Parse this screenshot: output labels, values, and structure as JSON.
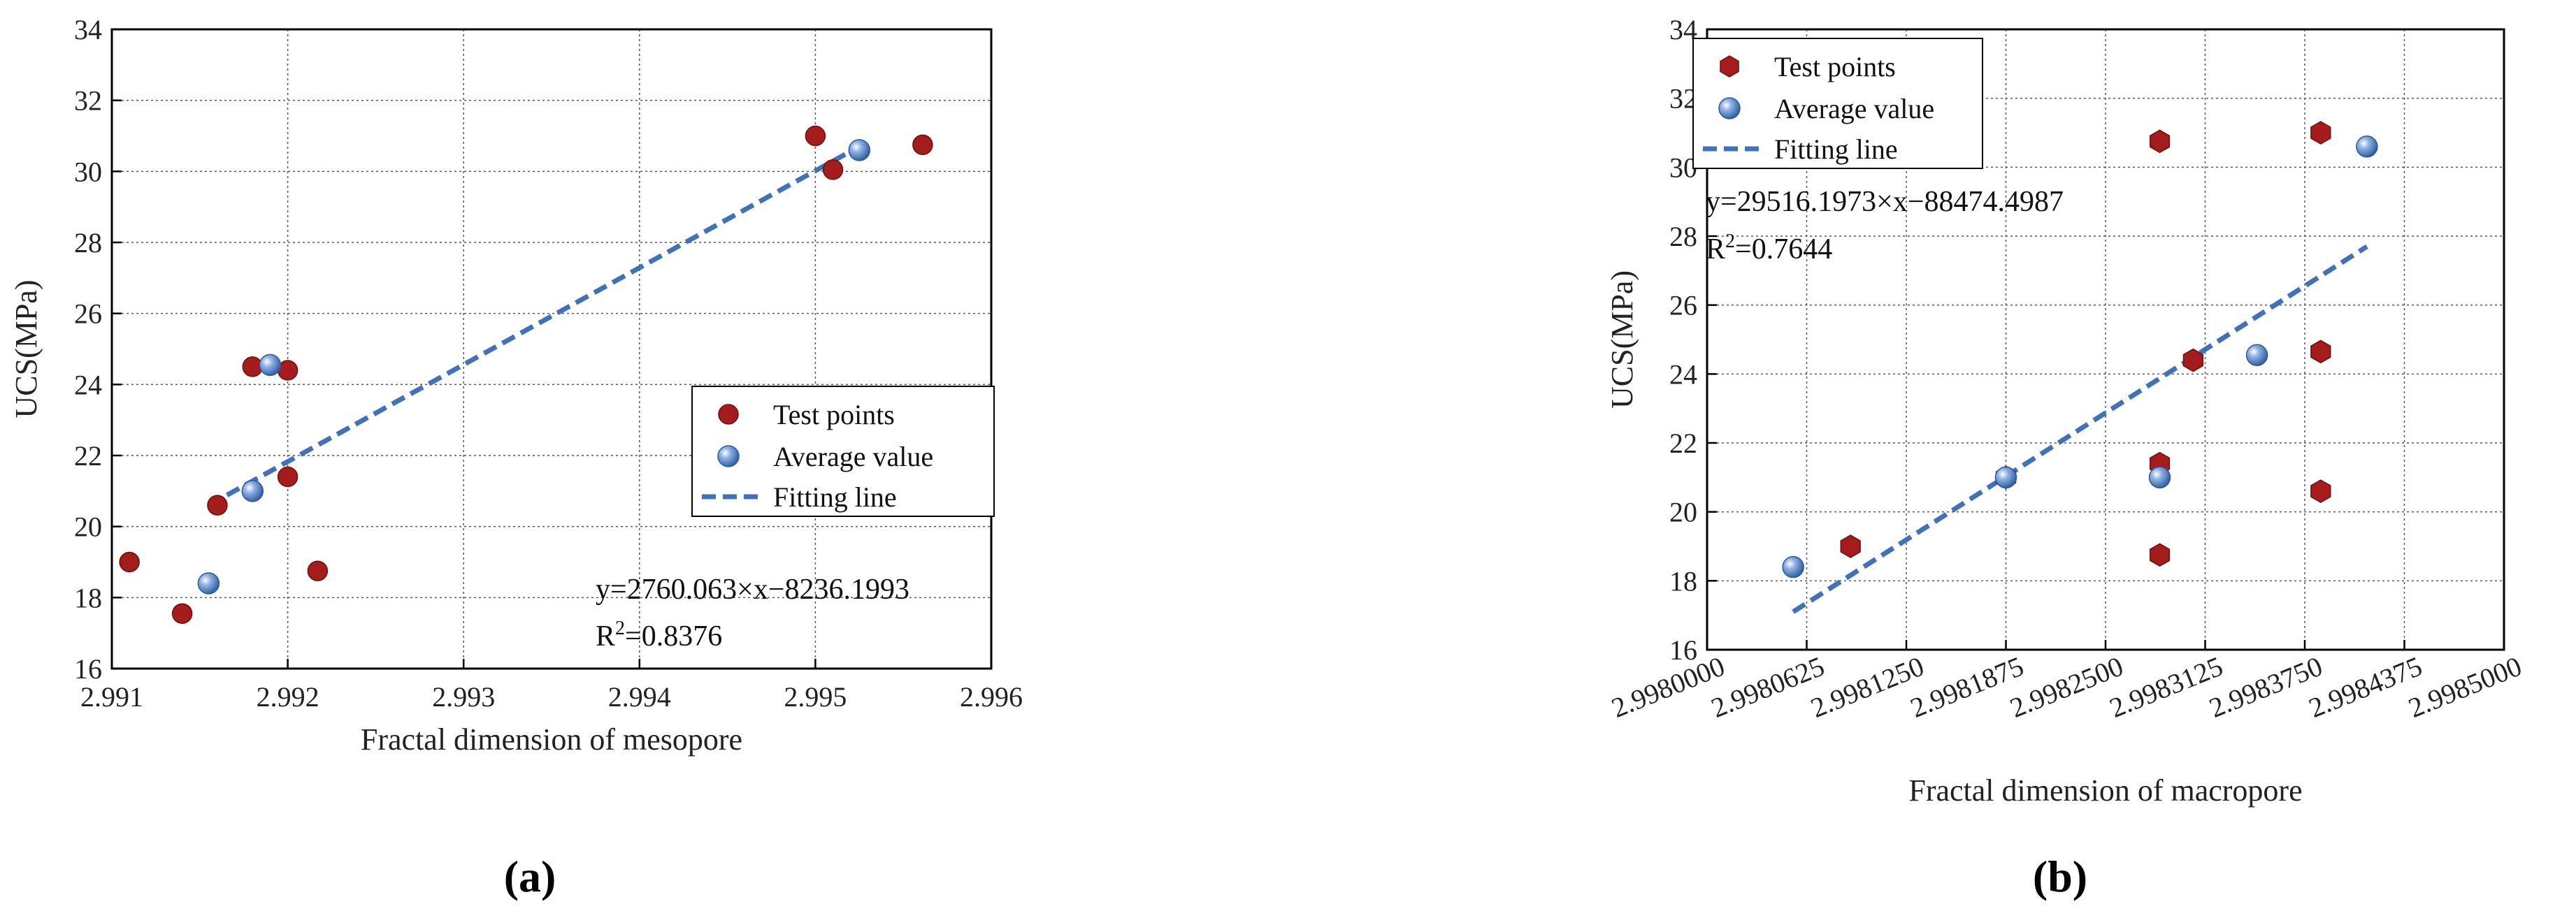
{
  "chart_data": [
    {
      "type": "scatter",
      "panel_label": "(a)",
      "xlabel": "Fractal dimension of mesopore",
      "ylabel": "UCS(MPa)",
      "xlim": [
        2.991,
        2.996
      ],
      "ylim": [
        16,
        34
      ],
      "x_ticks": [
        "2.991",
        "2.992",
        "2.993",
        "2.994",
        "2.995",
        "2.996"
      ],
      "x_tick_values": [
        2.991,
        2.992,
        2.993,
        2.994,
        2.995,
        2.996
      ],
      "y_ticks": [
        "16",
        "18",
        "20",
        "22",
        "24",
        "26",
        "28",
        "30",
        "32",
        "34"
      ],
      "y_tick_values": [
        16,
        18,
        20,
        22,
        24,
        26,
        28,
        30,
        32,
        34
      ],
      "grid": true,
      "legend_position": "center-right",
      "series": [
        {
          "name": "Test points",
          "marker": "circle",
          "color": "#A51C1C",
          "points": [
            [
              2.9911,
              19.0
            ],
            [
              2.9914,
              17.55
            ],
            [
              2.9916,
              20.6
            ],
            [
              2.9918,
              24.5
            ],
            [
              2.992,
              24.4
            ],
            [
              2.992,
              21.4
            ],
            [
              2.99217,
              18.75
            ],
            [
              2.995,
              31.0
            ],
            [
              2.9951,
              30.05
            ],
            [
              2.99561,
              30.75
            ]
          ]
        },
        {
          "name": "Average value",
          "marker": "sphere",
          "color": "#3F72BA",
          "points": [
            [
              2.99155,
              18.4
            ],
            [
              2.9918,
              21.0
            ],
            [
              2.9919,
              24.55
            ],
            [
              2.99525,
              30.6
            ]
          ]
        },
        {
          "name": "Fitting line",
          "style": "dashed",
          "color": "#3F72BA",
          "line": [
            [
              2.99155,
              20.6
            ],
            [
              2.99525,
              30.7
            ]
          ]
        }
      ],
      "annotations": {
        "equation": "y=2760.063×x−8236.1993",
        "r2_prefix": "R",
        "r2_sup": "2",
        "r2_value": "=0.8376"
      }
    },
    {
      "type": "scatter",
      "panel_label": "(b)",
      "xlabel": "Fractal dimension of macropore",
      "ylabel": "UCS(MPa)",
      "xlim": [
        2.998,
        2.9985
      ],
      "ylim": [
        16,
        34
      ],
      "x_ticks": [
        "2.9980000",
        "2.9980625",
        "2.9981250",
        "2.9981875",
        "2.9982500",
        "2.9983125",
        "2.9983750",
        "2.9984375",
        "2.9985000"
      ],
      "x_tick_values": [
        2.998,
        2.9980625,
        2.998125,
        2.9981875,
        2.99825,
        2.9983125,
        2.998375,
        2.9984375,
        2.9985
      ],
      "y_ticks": [
        "16",
        "18",
        "20",
        "22",
        "24",
        "26",
        "28",
        "30",
        "32",
        "34"
      ],
      "y_tick_values": [
        16,
        18,
        20,
        22,
        24,
        26,
        28,
        30,
        32,
        34
      ],
      "grid": true,
      "legend_position": "top-left",
      "series": [
        {
          "name": "Test points",
          "marker": "hexagon",
          "color": "#A51C1C",
          "points": [
            [
              2.99809,
              19.0
            ],
            [
              2.9981875,
              21.0
            ],
            [
              2.998284,
              30.75
            ],
            [
              2.998284,
              21.4
            ],
            [
              2.998284,
              18.75
            ],
            [
              2.998305,
              24.4
            ],
            [
              2.998385,
              31.0
            ],
            [
              2.998385,
              24.65
            ],
            [
              2.998385,
              20.6
            ]
          ]
        },
        {
          "name": "Average value",
          "marker": "sphere",
          "color": "#3F72BA",
          "points": [
            [
              2.998054,
              18.4
            ],
            [
              2.9981875,
              21.0
            ],
            [
              2.998284,
              21.0
            ],
            [
              2.998345,
              24.55
            ],
            [
              2.998414,
              30.6
            ]
          ]
        },
        {
          "name": "Fitting line",
          "style": "dashed",
          "color": "#3F72BA",
          "line": [
            [
              2.998054,
              17.1
            ],
            [
              2.998414,
              27.7
            ]
          ]
        }
      ],
      "annotations": {
        "equation": "y=29516.1973×x−88474.4987",
        "r2_prefix": "R",
        "r2_sup": "2",
        "r2_value": "=0.7644"
      }
    }
  ]
}
